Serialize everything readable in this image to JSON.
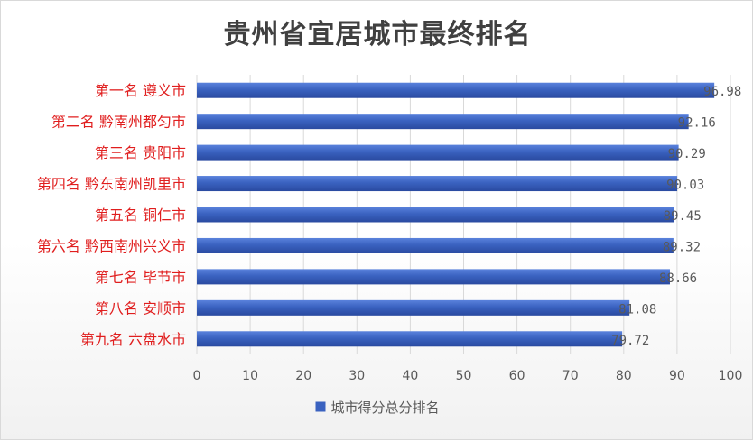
{
  "chart_data": {
    "type": "bar",
    "orientation": "horizontal",
    "title": "贵州省宜居城市最终排名",
    "categories": [
      "第一名  遵义市",
      "第二名  黔南州都匀市",
      "第三名  贵阳市",
      "第四名  黔东南州凯里市",
      "第五名  铜仁市",
      "第六名  黔西南州兴义市",
      "第七名  毕节市",
      "第八名  安顺市",
      "第九名  六盘水市"
    ],
    "series": [
      {
        "name": "城市得分总分排名",
        "values": [
          96.98,
          92.16,
          90.29,
          90.03,
          89.45,
          89.32,
          88.66,
          81.08,
          79.72
        ],
        "value_labels": [
          "96.98",
          "92.16",
          "90.29",
          "90.03",
          "89.45",
          "89.32",
          "88.66",
          "81.08",
          "79.72"
        ]
      }
    ],
    "xlim": [
      0,
      100
    ],
    "xticks": [
      0,
      10,
      20,
      30,
      40,
      50,
      60,
      70,
      80,
      90,
      100
    ],
    "grid": true,
    "legend_position": "bottom",
    "colors": {
      "bar": "#3a62c0",
      "category_text": "#e01e1e",
      "grid": "#d9d9d9",
      "title": "#404040"
    }
  }
}
